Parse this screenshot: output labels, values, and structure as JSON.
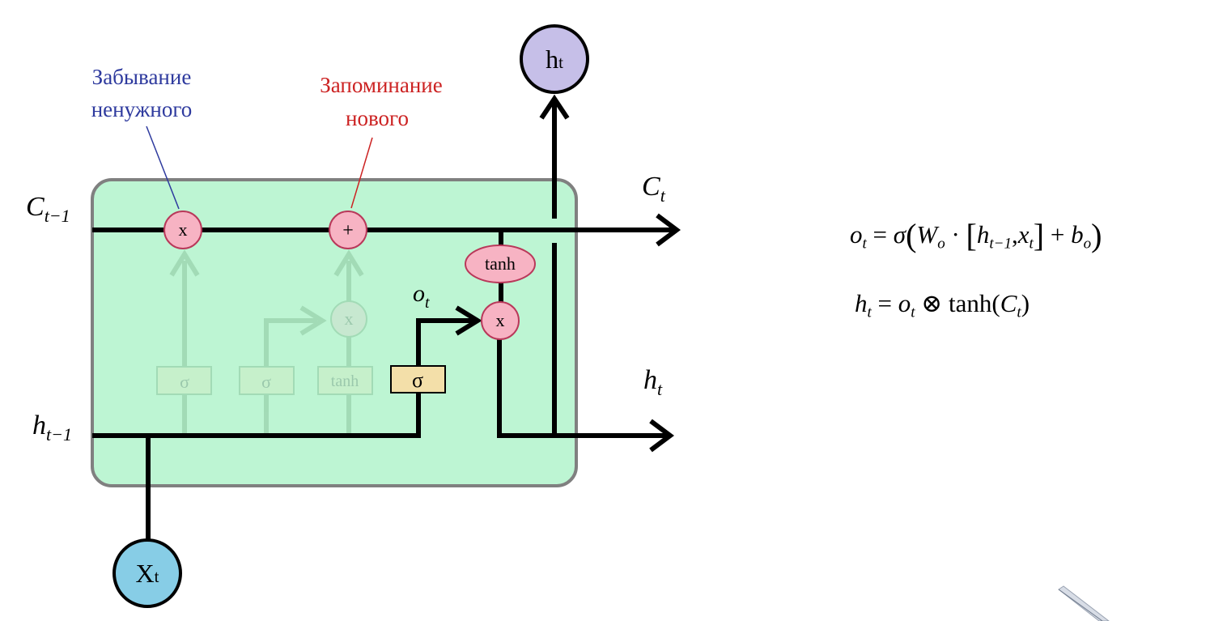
{
  "annotations": {
    "forget_line1": "Забывание",
    "forget_line2": "ненужного",
    "remember_line1": "Запоминание",
    "remember_line2": "нового"
  },
  "labels": {
    "c_prev_main": "C",
    "c_prev_sub": "t−1",
    "h_prev_main": "h",
    "h_prev_sub": "t−1",
    "c_t_main": "C",
    "c_t_sub": "t",
    "h_t_main": "h",
    "h_t_sub": "t",
    "o_t_main": "o",
    "o_t_sub": "t",
    "input_main": "X",
    "input_sub": "t",
    "output_main": "h",
    "output_sub": "t"
  },
  "gates": {
    "multiply": "x",
    "add": "+",
    "sigma": "σ",
    "tanh": "tanh"
  },
  "equations": {
    "eq1": {
      "lhs": "o",
      "lhs_sub": "t",
      "eq": "=",
      "sigma": "σ",
      "lparen": "(",
      "w": "W",
      "w_sub": "o",
      "dot": "·",
      "lbracket": "[",
      "h": "h",
      "h_sub": "t−1",
      "comma": ",",
      "x": "x",
      "x_sub": "t",
      "rbracket": "]",
      "plus": "+",
      "b": "b",
      "b_sub": "o",
      "rparen": ")"
    },
    "eq2": {
      "lhs": "h",
      "lhs_sub": "t",
      "eq": "=",
      "o": "o",
      "o_sub": "t",
      "otimes": "⊗",
      "tanh": "tanh(",
      "c": "C",
      "c_sub": "t",
      "rparen": ")"
    }
  },
  "colors": {
    "cell_fill": "#bdf5d3",
    "cell_border": "#808080",
    "gate_fill": "#f7b3c3",
    "gate_border": "#b9385a",
    "sigma_box_fill": "#f3dfa9",
    "input_node_fill": "#87cde6",
    "output_node_fill": "#c6bfe8",
    "forget_text": "#2e3a9e",
    "remember_text": "#cc2222"
  }
}
